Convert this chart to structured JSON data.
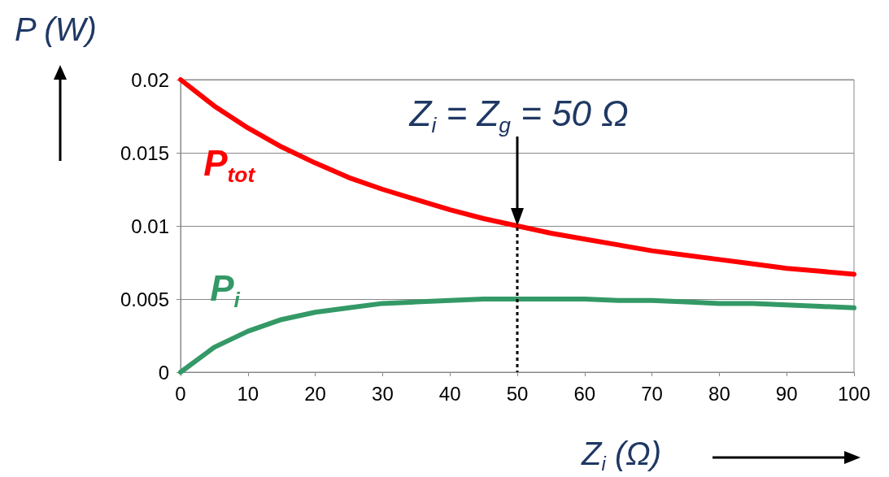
{
  "chart_data": {
    "type": "line",
    "xlabel": "Z$_{i}$ (Ω)",
    "ylabel": "P (W)",
    "x": [
      0,
      5,
      10,
      15,
      20,
      25,
      30,
      35,
      40,
      45,
      50,
      55,
      60,
      65,
      70,
      75,
      80,
      85,
      90,
      95,
      100
    ],
    "series": [
      {
        "name": "P$_{tot}$",
        "color": "#ff0000",
        "values": [
          0.02,
          0.0182,
          0.0167,
          0.0154,
          0.0143,
          0.0133,
          0.0125,
          0.0118,
          0.0111,
          0.0105,
          0.01,
          0.0095,
          0.0091,
          0.0087,
          0.0083,
          0.008,
          0.0077,
          0.0074,
          0.0071,
          0.0069,
          0.0067
        ]
      },
      {
        "name": "P$_{i}$",
        "color": "#339966",
        "values": [
          0,
          0.0017,
          0.0028,
          0.0036,
          0.0041,
          0.0044,
          0.0047,
          0.0048,
          0.0049,
          0.005,
          0.005,
          0.005,
          0.005,
          0.0049,
          0.0049,
          0.0048,
          0.0047,
          0.0047,
          0.0046,
          0.0045,
          0.0044
        ]
      }
    ],
    "xlim": [
      0,
      100
    ],
    "xticks": [
      0,
      10,
      20,
      30,
      40,
      50,
      60,
      70,
      80,
      90,
      100
    ],
    "ylim": [
      0,
      0.02
    ],
    "yticks": [
      0,
      0.005,
      0.01,
      0.015,
      0.02
    ],
    "grid": "y",
    "marker": "none",
    "line_style": "solid",
    "annotations": [
      {
        "text": "Z$_{i}$ = Z$_{g}$ = 50 Ω",
        "x": 50,
        "y": 0.01
      }
    ]
  }
}
